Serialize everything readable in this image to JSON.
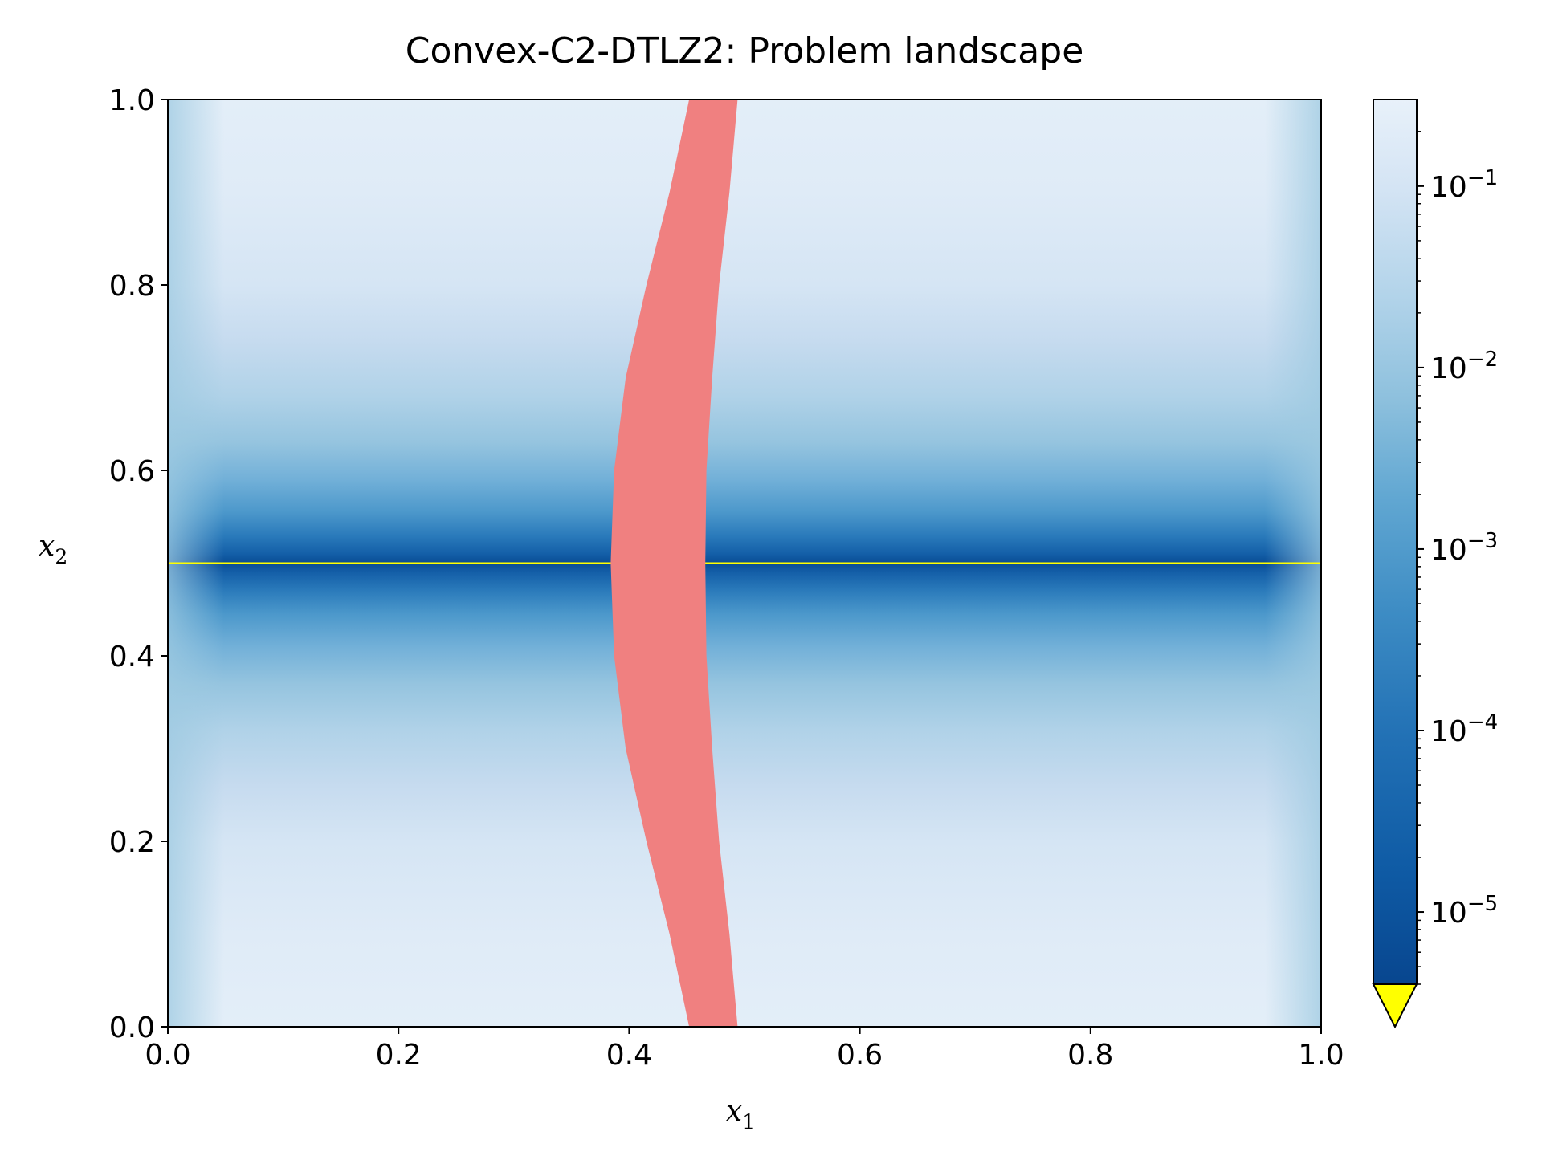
{
  "chart_data": {
    "type": "heatmap",
    "title": "Convex-C2-DTLZ2: Problem landscape",
    "xlabel": "x",
    "xlabel_sub": "1",
    "ylabel": "x",
    "ylabel_sub": "2",
    "xlim": [
      0.0,
      1.0
    ],
    "ylim": [
      0.0,
      1.0
    ],
    "x_ticks": [
      0.0,
      0.2,
      0.4,
      0.6,
      0.8,
      1.0
    ],
    "y_ticks": [
      0.0,
      0.2,
      0.4,
      0.6,
      0.8,
      1.0
    ],
    "x_tick_labels": [
      "0.0",
      "0.2",
      "0.4",
      "0.6",
      "0.8",
      "1.0"
    ],
    "y_tick_labels": [
      "0.0",
      "0.2",
      "0.4",
      "0.6",
      "0.8",
      "1.0"
    ],
    "colorbar": {
      "scale": "log",
      "range": [
        4e-06,
        0.3
      ],
      "colormap": "Blues_r",
      "extend": "min",
      "under_color": "#ffff00",
      "major_ticks": [
        1e-05,
        0.0001,
        0.001,
        0.01,
        0.1
      ],
      "major_tick_labels": [
        {
          "base": "10",
          "exp": "−5"
        },
        {
          "base": "10",
          "exp": "−4"
        },
        {
          "base": "10",
          "exp": "−3"
        },
        {
          "base": "10",
          "exp": "−2"
        },
        {
          "base": "10",
          "exp": "−1"
        }
      ]
    },
    "optimal_line": {
      "x2": 0.5,
      "color": "#ffff00"
    },
    "infeasible_region": {
      "color": "#f08080",
      "boundary_samples": [
        {
          "x2": 0.0,
          "x1_left": 0.452,
          "x1_right": 0.494
        },
        {
          "x2": 0.1,
          "x1_left": 0.435,
          "x1_right": 0.487
        },
        {
          "x2": 0.2,
          "x1_left": 0.415,
          "x1_right": 0.478
        },
        {
          "x2": 0.3,
          "x1_left": 0.397,
          "x1_right": 0.472
        },
        {
          "x2": 0.4,
          "x1_left": 0.387,
          "x1_right": 0.467
        },
        {
          "x2": 0.5,
          "x1_left": 0.384,
          "x1_right": 0.466
        },
        {
          "x2": 0.6,
          "x1_left": 0.387,
          "x1_right": 0.467
        },
        {
          "x2": 0.7,
          "x1_left": 0.397,
          "x1_right": 0.472
        },
        {
          "x2": 0.8,
          "x1_left": 0.415,
          "x1_right": 0.478
        },
        {
          "x2": 0.9,
          "x1_left": 0.435,
          "x1_right": 0.487
        },
        {
          "x2": 1.0,
          "x1_left": 0.452,
          "x1_right": 0.494
        }
      ]
    }
  }
}
